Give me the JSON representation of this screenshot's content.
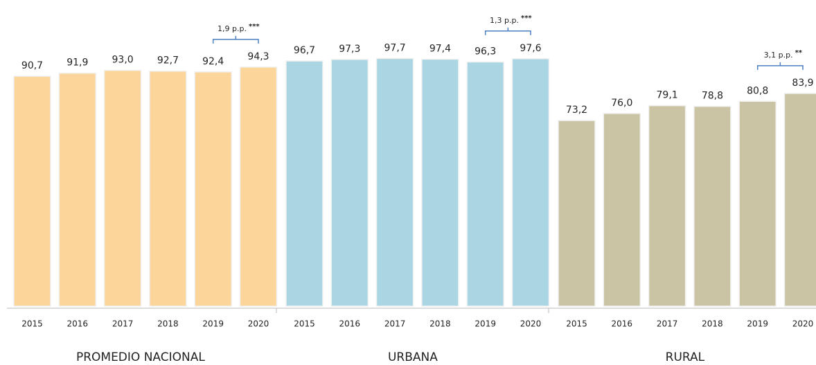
{
  "chart_data": {
    "type": "bar",
    "ylim": [
      0,
      100
    ],
    "groups": [
      {
        "name": "PROMEDIO NACIONAL",
        "color": "#fcd59b",
        "categories": [
          "2015",
          "2016",
          "2017",
          "2018",
          "2019",
          "2020"
        ],
        "values": [
          90.7,
          91.9,
          93.0,
          92.7,
          92.4,
          94.3
        ],
        "value_labels": [
          "90,7",
          "91,9",
          "93,0",
          "92,7",
          "92,4",
          "94,3"
        ],
        "annotation": {
          "label": "1,9 p.p.",
          "significance": "***"
        }
      },
      {
        "name": "URBANA",
        "color": "#a9d6e2",
        "categories": [
          "2015",
          "2016",
          "2017",
          "2018",
          "2019",
          "2020"
        ],
        "values": [
          96.7,
          97.3,
          97.7,
          97.4,
          96.3,
          97.6
        ],
        "value_labels": [
          "96,7",
          "97,3",
          "97,7",
          "97,4",
          "96,3",
          "97,6"
        ],
        "annotation": {
          "label": "1,3 p.p.",
          "significance": "***"
        }
      },
      {
        "name": "RURAL",
        "color": "#cac4a4",
        "categories": [
          "2015",
          "2016",
          "2017",
          "2018",
          "2019",
          "2020"
        ],
        "values": [
          73.2,
          76.0,
          79.1,
          78.8,
          80.8,
          83.9
        ],
        "value_labels": [
          "73,2",
          "76,0",
          "79,1",
          "78,8",
          "80,8",
          "83,9"
        ],
        "annotation": {
          "label": "3,1 p.p.",
          "significance": "**"
        }
      }
    ]
  }
}
